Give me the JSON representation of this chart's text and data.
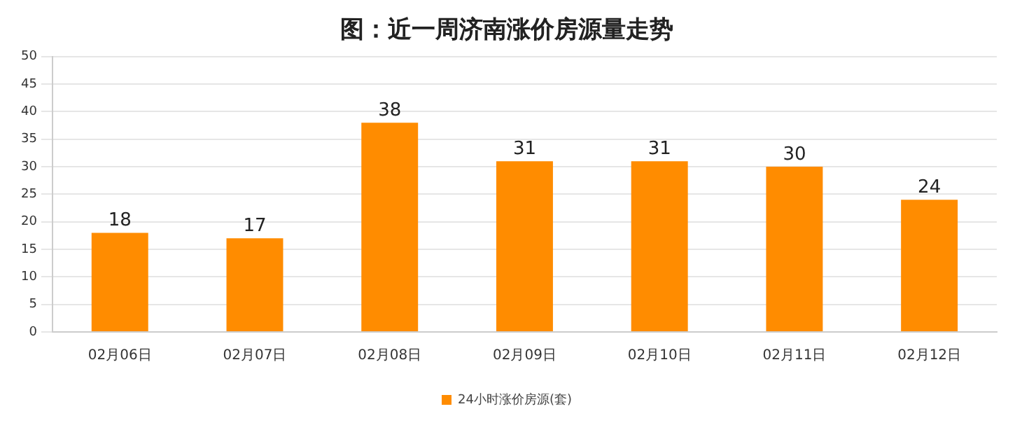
{
  "chart_data": {
    "type": "bar",
    "title": "图：近一周济南涨价房源量走势",
    "categories": [
      "02月06日",
      "02月07日",
      "02月08日",
      "02月09日",
      "02月10日",
      "02月11日",
      "02月12日"
    ],
    "series": [
      {
        "name": "24小时涨价房源(套)",
        "color": "#ff8c00",
        "values": [
          18,
          17,
          38,
          31,
          31,
          30,
          24
        ]
      }
    ],
    "ylim": [
      0,
      50
    ],
    "yticks": [
      0,
      5,
      10,
      15,
      20,
      25,
      30,
      35,
      40,
      45,
      50
    ],
    "grid": "y",
    "legend": "bottom",
    "data_labels": true
  }
}
